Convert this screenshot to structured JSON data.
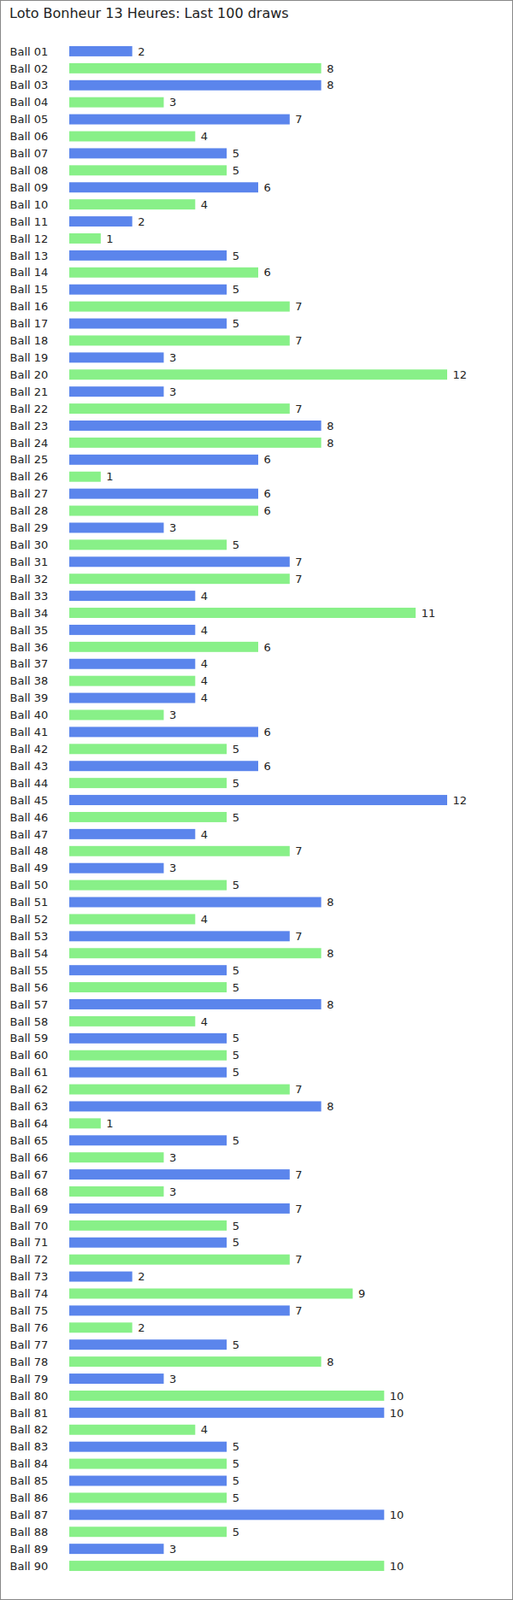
{
  "chart_data": {
    "type": "bar",
    "title": "Loto Bonheur 13 Heures: Last 100 draws",
    "orientation": "horizontal",
    "data_labels": true,
    "tick_labels": "y",
    "grid": false,
    "xlim": [
      0,
      12
    ],
    "categories": [
      "Ball 01",
      "Ball 02",
      "Ball 03",
      "Ball 04",
      "Ball 05",
      "Ball 06",
      "Ball 07",
      "Ball 08",
      "Ball 09",
      "Ball 10",
      "Ball 11",
      "Ball 12",
      "Ball 13",
      "Ball 14",
      "Ball 15",
      "Ball 16",
      "Ball 17",
      "Ball 18",
      "Ball 19",
      "Ball 20",
      "Ball 21",
      "Ball 22",
      "Ball 23",
      "Ball 24",
      "Ball 25",
      "Ball 26",
      "Ball 27",
      "Ball 28",
      "Ball 29",
      "Ball 30",
      "Ball 31",
      "Ball 32",
      "Ball 33",
      "Ball 34",
      "Ball 35",
      "Ball 36",
      "Ball 37",
      "Ball 38",
      "Ball 39",
      "Ball 40",
      "Ball 41",
      "Ball 42",
      "Ball 43",
      "Ball 44",
      "Ball 45",
      "Ball 46",
      "Ball 47",
      "Ball 48",
      "Ball 49",
      "Ball 50",
      "Ball 51",
      "Ball 52",
      "Ball 53",
      "Ball 54",
      "Ball 55",
      "Ball 56",
      "Ball 57",
      "Ball 58",
      "Ball 59",
      "Ball 60",
      "Ball 61",
      "Ball 62",
      "Ball 63",
      "Ball 64",
      "Ball 65",
      "Ball 66",
      "Ball 67",
      "Ball 68",
      "Ball 69",
      "Ball 70",
      "Ball 71",
      "Ball 72",
      "Ball 73",
      "Ball 74",
      "Ball 75",
      "Ball 76",
      "Ball 77",
      "Ball 78",
      "Ball 79",
      "Ball 80",
      "Ball 81",
      "Ball 82",
      "Ball 83",
      "Ball 84",
      "Ball 85",
      "Ball 86",
      "Ball 87",
      "Ball 88",
      "Ball 89",
      "Ball 90"
    ],
    "values": [
      2,
      8,
      8,
      3,
      7,
      4,
      5,
      5,
      6,
      4,
      2,
      1,
      5,
      6,
      5,
      7,
      5,
      7,
      3,
      12,
      3,
      7,
      8,
      8,
      6,
      1,
      6,
      6,
      3,
      5,
      7,
      7,
      4,
      11,
      4,
      6,
      4,
      4,
      4,
      3,
      6,
      5,
      6,
      5,
      12,
      5,
      4,
      7,
      3,
      5,
      8,
      4,
      7,
      8,
      5,
      5,
      8,
      4,
      5,
      5,
      5,
      7,
      8,
      1,
      5,
      3,
      7,
      3,
      7,
      5,
      5,
      7,
      2,
      9,
      7,
      2,
      5,
      8,
      3,
      10,
      10,
      4,
      5,
      5,
      5,
      5,
      10,
      5,
      3,
      10
    ],
    "colors": [
      "#5b85ec",
      "#88f088",
      "#5b85ec",
      "#88f088",
      "#5b85ec",
      "#88f088",
      "#5b85ec",
      "#88f088",
      "#5b85ec",
      "#88f088",
      "#5b85ec",
      "#88f088",
      "#5b85ec",
      "#88f088",
      "#5b85ec",
      "#88f088",
      "#5b85ec",
      "#88f088",
      "#5b85ec",
      "#88f088",
      "#5b85ec",
      "#88f088",
      "#5b85ec",
      "#88f088",
      "#5b85ec",
      "#88f088",
      "#5b85ec",
      "#88f088",
      "#5b85ec",
      "#88f088",
      "#5b85ec",
      "#88f088",
      "#5b85ec",
      "#88f088",
      "#5b85ec",
      "#88f088",
      "#5b85ec",
      "#88f088",
      "#5b85ec",
      "#88f088",
      "#5b85ec",
      "#88f088",
      "#5b85ec",
      "#88f088",
      "#5b85ec",
      "#88f088",
      "#5b85ec",
      "#88f088",
      "#5b85ec",
      "#88f088",
      "#5b85ec",
      "#88f088",
      "#5b85ec",
      "#88f088",
      "#5b85ec",
      "#88f088",
      "#5b85ec",
      "#88f088",
      "#5b85ec",
      "#88f088",
      "#5b85ec",
      "#88f088",
      "#5b85ec",
      "#88f088",
      "#5b85ec",
      "#88f088",
      "#5b85ec",
      "#88f088",
      "#5b85ec",
      "#88f088",
      "#5b85ec",
      "#88f088",
      "#5b85ec",
      "#88f088",
      "#5b85ec",
      "#88f088",
      "#5b85ec",
      "#88f088",
      "#5b85ec",
      "#88f088",
      "#5b85ec",
      "#88f088",
      "#5b85ec",
      "#88f088",
      "#5b85ec",
      "#88f088",
      "#5b85ec",
      "#88f088",
      "#5b85ec",
      "#88f088"
    ]
  }
}
